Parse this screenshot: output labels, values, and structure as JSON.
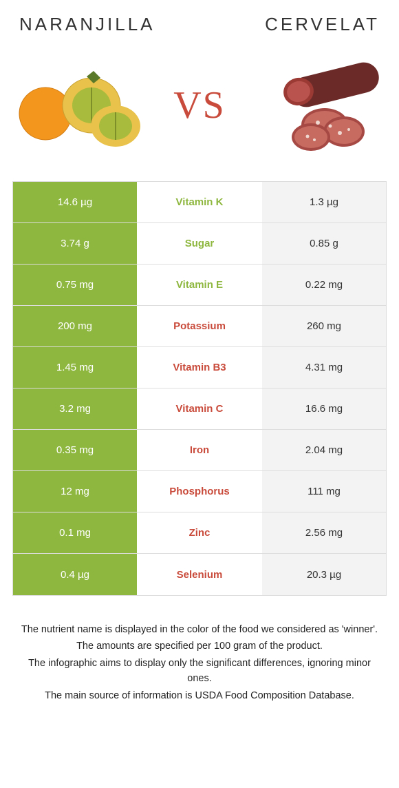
{
  "colors": {
    "left_bg": "#8eb73f",
    "left_text": "#ffffff",
    "right_bg": "#f3f3f3",
    "right_text": "#333333",
    "left_winner_label": "#8eb73f",
    "right_winner_label": "#c94b3b",
    "vs_color": "#c94b3b",
    "border": "#dddddd"
  },
  "titles": {
    "left": "NARANJILLA",
    "right": "CERVELAT",
    "vs": "VS"
  },
  "rows": [
    {
      "name": "Vitamin K",
      "left": "14.6 µg",
      "right": "1.3 µg",
      "winner": "left"
    },
    {
      "name": "Sugar",
      "left": "3.74 g",
      "right": "0.85 g",
      "winner": "left"
    },
    {
      "name": "Vitamin E",
      "left": "0.75 mg",
      "right": "0.22 mg",
      "winner": "left"
    },
    {
      "name": "Potassium",
      "left": "200 mg",
      "right": "260 mg",
      "winner": "right"
    },
    {
      "name": "Vitamin B3",
      "left": "1.45 mg",
      "right": "4.31 mg",
      "winner": "right"
    },
    {
      "name": "Vitamin C",
      "left": "3.2 mg",
      "right": "16.6 mg",
      "winner": "right"
    },
    {
      "name": "Iron",
      "left": "0.35 mg",
      "right": "2.04 mg",
      "winner": "right"
    },
    {
      "name": "Phosphorus",
      "left": "12 mg",
      "right": "111 mg",
      "winner": "right"
    },
    {
      "name": "Zinc",
      "left": "0.1 mg",
      "right": "2.56 mg",
      "winner": "right"
    },
    {
      "name": "Selenium",
      "left": "0.4 µg",
      "right": "20.3 µg",
      "winner": "right"
    }
  ],
  "footer": {
    "l1": "The nutrient name is displayed in the color of the food we considered as 'winner'.",
    "l2": "The amounts are specified per 100 gram of the product.",
    "l3": "The infographic aims to display only the significant differences, ignoring minor ones.",
    "l4": "The main source of information is USDA Food Composition Database."
  }
}
